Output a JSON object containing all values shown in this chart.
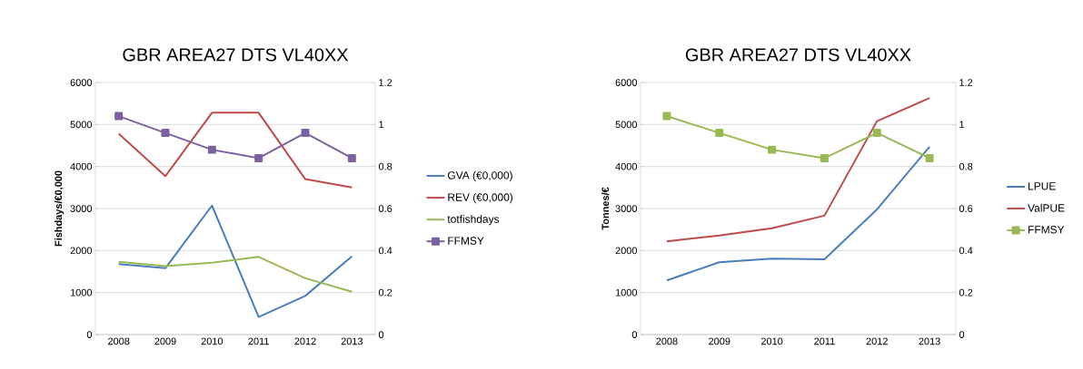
{
  "chart_data": [
    {
      "type": "line",
      "title": "GBR AREA27 DTS VL40XX",
      "ylabel": "Fishdays/€0,000",
      "categories": [
        "2008",
        "2009",
        "2010",
        "2011",
        "2012",
        "2013"
      ],
      "series": [
        {
          "name": "GVA (€0,000)",
          "color": "#4a7ebb",
          "marker": "none",
          "values": [
            1680,
            1580,
            3070,
            420,
            920,
            1860
          ]
        },
        {
          "name": "REV (€0,000)",
          "color": "#be4b48",
          "marker": "none",
          "values": [
            4780,
            3770,
            5280,
            5280,
            3700,
            3500
          ]
        },
        {
          "name": "totfishdays",
          "color": "#98b954",
          "marker": "none",
          "values": [
            1730,
            1630,
            1710,
            1850,
            1340,
            1020
          ]
        },
        {
          "name": "FFMSY",
          "color": "#7d60a0",
          "marker": "square",
          "axis": "y2",
          "values": [
            1.04,
            0.96,
            0.88,
            0.84,
            0.96,
            0.84
          ]
        }
      ],
      "ylim": [
        0,
        6000
      ],
      "yticks": [
        0,
        1000,
        2000,
        3000,
        4000,
        5000,
        6000
      ],
      "y2lim": [
        0,
        1.2
      ],
      "y2ticks": [
        0,
        0.2,
        0.4,
        0.6,
        0.8,
        1,
        1.2
      ],
      "grid": "y",
      "legend": "right",
      "line_style": "solid"
    },
    {
      "type": "line",
      "title": "GBR AREA27 DTS VL40XX",
      "ylabel": "Tonnes/€",
      "categories": [
        "2008",
        "2009",
        "2010",
        "2011",
        "2012",
        "2013"
      ],
      "series": [
        {
          "name": "LPUE",
          "color": "#4a7ebb",
          "marker": "none",
          "values": [
            1290,
            1720,
            1810,
            1790,
            2980,
            4470
          ]
        },
        {
          "name": "ValPUE",
          "color": "#be4b48",
          "marker": "none",
          "values": [
            2220,
            2360,
            2530,
            2830,
            5080,
            5630
          ]
        },
        {
          "name": "FFMSY",
          "color": "#98b954",
          "marker": "square",
          "axis": "y2",
          "values": [
            1.04,
            0.96,
            0.88,
            0.84,
            0.96,
            0.84
          ]
        }
      ],
      "ylim": [
        0,
        6000
      ],
      "yticks": [
        0,
        1000,
        2000,
        3000,
        4000,
        5000,
        6000
      ],
      "y2lim": [
        0,
        1.2
      ],
      "y2ticks": [
        0,
        0.2,
        0.4,
        0.6,
        0.8,
        1,
        1.2
      ],
      "grid": "y",
      "legend": "right",
      "line_style": "solid"
    }
  ]
}
